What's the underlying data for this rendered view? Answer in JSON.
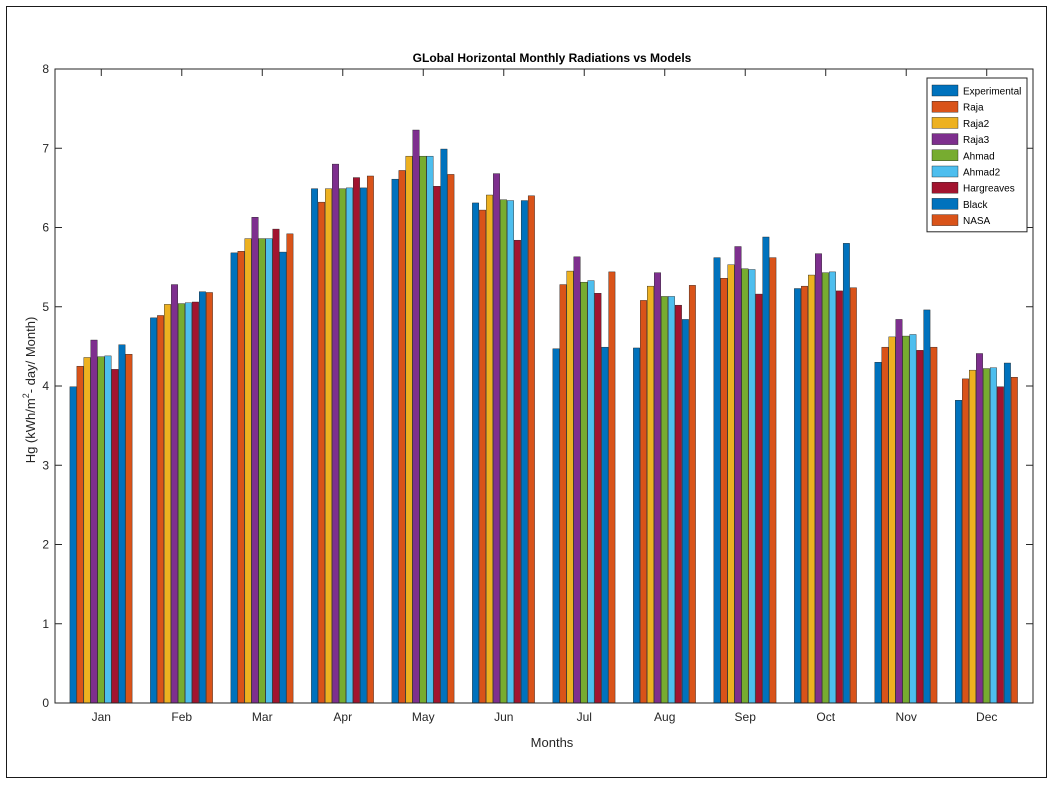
{
  "chart_data": {
    "type": "bar",
    "title": "GLobal Horizontal Monthly Radiations vs Models",
    "xlabel": "Months",
    "ylabel_parts": [
      "Hg (kWh/m",
      "2",
      "- day/ Month)"
    ],
    "ylim": [
      0,
      8
    ],
    "yticks": [
      0,
      1,
      2,
      3,
      4,
      5,
      6,
      7,
      8
    ],
    "legend_position": "top-right",
    "categories": [
      "Jan",
      "Feb",
      "Mar",
      "Apr",
      "May",
      "Jun",
      "Jul",
      "Aug",
      "Sep",
      "Oct",
      "Nov",
      "Dec"
    ],
    "series": [
      {
        "name": "Experimental",
        "color": "#0072BD",
        "values": [
          3.99,
          4.86,
          5.68,
          6.49,
          6.61,
          6.31,
          4.47,
          4.48,
          5.62,
          5.23,
          4.3,
          3.82
        ]
      },
      {
        "name": "Raja",
        "color": "#D95319",
        "values": [
          4.25,
          4.89,
          5.7,
          6.32,
          6.72,
          6.22,
          5.28,
          5.08,
          5.36,
          5.26,
          4.49,
          4.09
        ]
      },
      {
        "name": "Raja2",
        "color": "#EDB120",
        "values": [
          4.36,
          5.03,
          5.86,
          6.49,
          6.9,
          6.41,
          5.45,
          5.26,
          5.53,
          5.4,
          4.62,
          4.2
        ]
      },
      {
        "name": "Raja3",
        "color": "#7E2F8E",
        "values": [
          4.58,
          5.28,
          6.13,
          6.8,
          7.23,
          6.68,
          5.63,
          5.43,
          5.76,
          5.67,
          4.84,
          4.41
        ]
      },
      {
        "name": "Ahmad",
        "color": "#77AC30",
        "values": [
          4.37,
          5.04,
          5.86,
          6.49,
          6.9,
          6.35,
          5.31,
          5.13,
          5.48,
          5.43,
          4.63,
          4.22
        ]
      },
      {
        "name": "Ahmad2",
        "color": "#4DBEEE",
        "values": [
          4.38,
          5.05,
          5.86,
          6.5,
          6.9,
          6.34,
          5.33,
          5.13,
          5.47,
          5.44,
          4.65,
          4.23
        ]
      },
      {
        "name": "Hargreaves",
        "color": "#A2142F",
        "values": [
          4.21,
          5.06,
          5.98,
          6.63,
          6.52,
          5.84,
          5.17,
          5.02,
          5.16,
          5.2,
          4.45,
          3.99
        ]
      },
      {
        "name": "Black",
        "color": "#0072BD",
        "values": [
          4.52,
          5.19,
          5.69,
          6.5,
          6.99,
          6.34,
          4.49,
          4.84,
          5.88,
          5.8,
          4.96,
          4.29
        ]
      },
      {
        "name": "NASA",
        "color": "#D95319",
        "values": [
          4.4,
          5.18,
          5.92,
          6.65,
          6.67,
          6.4,
          5.44,
          5.27,
          5.62,
          5.24,
          4.49,
          4.11
        ]
      }
    ]
  }
}
